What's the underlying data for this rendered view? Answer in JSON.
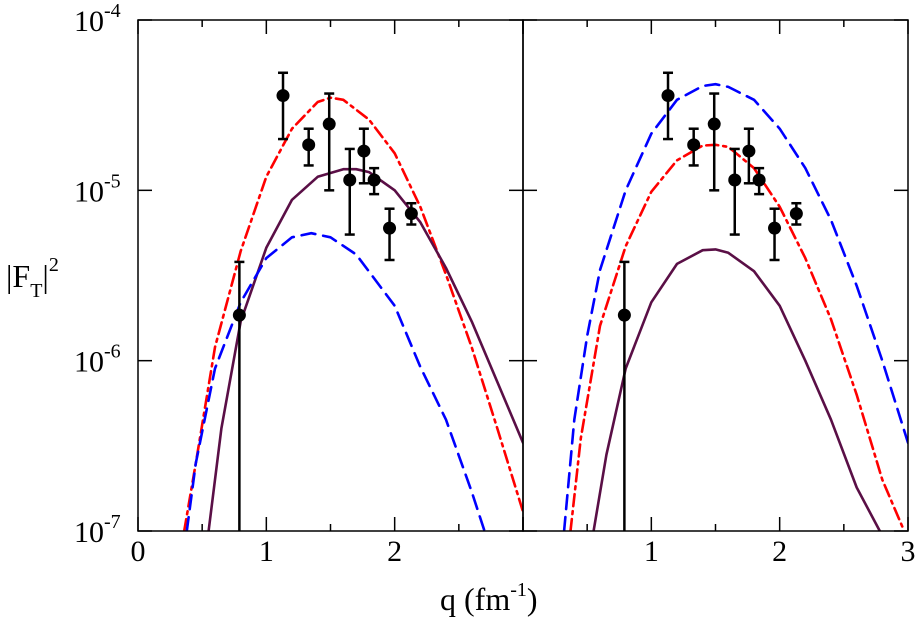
{
  "chart_data": {
    "type": "line",
    "title": "",
    "xlabel": "q (fm",
    "xlabel_exp": "-1",
    "xlabel_close": ")",
    "ylabel_main": "|F",
    "ylabel_sub": "T",
    "ylabel_close": "|",
    "ylabel_exp": "2",
    "yscale": "log",
    "ylim": [
      1e-07,
      0.0001
    ],
    "y_ticks": [
      {
        "base": "10",
        "exp": "-7"
      },
      {
        "base": "10",
        "exp": "-6"
      },
      {
        "base": "10",
        "exp": "-5"
      },
      {
        "base": "10",
        "exp": "-4"
      }
    ],
    "panels": [
      {
        "xlim": [
          0,
          3
        ],
        "x_tick_labels": [
          "0",
          "1",
          "2"
        ],
        "series": [
          {
            "name": "red-dashdot",
            "style": "dashdot",
            "color": "#ff0000",
            "x": [
              0.36,
              0.45,
              0.6,
              0.8,
              1.0,
              1.2,
              1.4,
              1.5,
              1.6,
              1.8,
              2.0,
              2.2,
              2.4,
              2.6,
              2.8,
              3.0
            ],
            "y": [
              1e-07,
              2.5e-07,
              1.2e-06,
              4.4e-06,
              1.2e-05,
              2.3e-05,
              3.3e-05,
              3.5e-05,
              3.4e-05,
              2.6e-05,
              1.65e-05,
              8e-06,
              3.2e-06,
              1.2e-06,
              4e-07,
              1.3e-07
            ]
          },
          {
            "name": "purple-solid",
            "style": "solid",
            "color": "#5a0f46",
            "x": [
              0.55,
              0.65,
              0.8,
              1.0,
              1.2,
              1.4,
              1.6,
              1.7,
              1.8,
              2.0,
              2.2,
              2.4,
              2.6,
              2.8,
              3.0
            ],
            "y": [
              1e-07,
              4e-07,
              1.7e-06,
              4.6e-06,
              8.8e-06,
              1.2e-05,
              1.33e-05,
              1.33e-05,
              1.28e-05,
              1e-05,
              6.5e-06,
              3.5e-06,
              1.7e-06,
              7.5e-07,
              3.3e-07
            ]
          },
          {
            "name": "blue-dashed",
            "style": "dashed",
            "color": "#0000ff",
            "x": [
              0.38,
              0.45,
              0.6,
              0.8,
              1.0,
              1.2,
              1.35,
              1.5,
              1.7,
              2.0,
              2.2,
              2.4,
              2.6,
              2.7
            ],
            "y": [
              1e-07,
              2.5e-07,
              9e-07,
              2.2e-06,
              4e-06,
              5.3e-06,
              5.6e-06,
              5.3e-06,
              4.2e-06,
              2.1e-06,
              9.2e-07,
              4.5e-07,
              1.7e-07,
              1e-07
            ]
          }
        ],
        "data_points": [
          {
            "x": 0.79,
            "y": 1.85e-06,
            "ylow": 1e-07,
            "yhigh": 3.8e-06
          },
          {
            "x": 1.13,
            "y": 3.6e-05,
            "ylow": 2e-05,
            "yhigh": 4.9e-05
          },
          {
            "x": 1.33,
            "y": 1.85e-05,
            "ylow": 1.4e-05,
            "yhigh": 2.3e-05
          },
          {
            "x": 1.49,
            "y": 2.45e-05,
            "ylow": 1e-05,
            "yhigh": 3.7e-05
          },
          {
            "x": 1.65,
            "y": 1.15e-05,
            "ylow": 5.5e-06,
            "yhigh": 1.75e-05
          },
          {
            "x": 1.76,
            "y": 1.7e-05,
            "ylow": 1.1e-05,
            "yhigh": 2.3e-05
          },
          {
            "x": 1.84,
            "y": 1.15e-05,
            "ylow": 9.5e-06,
            "yhigh": 1.35e-05
          },
          {
            "x": 1.96,
            "y": 6e-06,
            "ylow": 3.9e-06,
            "yhigh": 7.8e-06
          },
          {
            "x": 2.13,
            "y": 7.3e-06,
            "ylow": 6.3e-06,
            "yhigh": 8.4e-06
          }
        ]
      },
      {
        "xlim": [
          0,
          3
        ],
        "x_tick_labels": [
          "1",
          "2",
          "3"
        ],
        "series": [
          {
            "name": "blue-dashed",
            "style": "dashed",
            "color": "#0000ff",
            "x": [
              0.32,
              0.4,
              0.5,
              0.6,
              0.8,
              1.0,
              1.2,
              1.4,
              1.5,
              1.6,
              1.8,
              2.0,
              2.2,
              2.4,
              2.6,
              2.8,
              3.0
            ],
            "y": [
              1e-07,
              4.5e-07,
              1.4e-06,
              3.4e-06,
              1e-05,
              2.15e-05,
              3.4e-05,
              4.1e-05,
              4.2e-05,
              4.05e-05,
              3.4e-05,
              2.3e-05,
              1.35e-05,
              6.7e-06,
              2.75e-06,
              1e-06,
              3.3e-07
            ]
          },
          {
            "name": "red-dashdot",
            "style": "dashdot",
            "color": "#ff0000",
            "x": [
              0.37,
              0.45,
              0.6,
              0.8,
              1.0,
              1.2,
              1.4,
              1.5,
              1.6,
              1.8,
              2.0,
              2.2,
              2.4,
              2.6,
              2.8,
              2.97
            ],
            "y": [
              1e-07,
              3.5e-07,
              1.6e-06,
              4.7e-06,
              9.8e-06,
              1.5e-05,
              1.83e-05,
              1.85e-05,
              1.8e-05,
              1.35e-05,
              8e-06,
              4e-06,
              1.75e-06,
              6.3e-07,
              2e-07,
              1e-07
            ]
          },
          {
            "name": "purple-solid",
            "style": "solid",
            "color": "#5a0f46",
            "x": [
              0.55,
              0.65,
              0.8,
              1.0,
              1.2,
              1.4,
              1.5,
              1.6,
              1.8,
              2.0,
              2.2,
              2.4,
              2.6,
              2.78
            ],
            "y": [
              1e-07,
              2.8e-07,
              9e-07,
              2.2e-06,
              3.7e-06,
              4.45e-06,
              4.5e-06,
              4.3e-06,
              3.35e-06,
              2.1e-06,
              1e-06,
              4.5e-07,
              1.8e-07,
              1e-07
            ]
          }
        ],
        "data_points": [
          {
            "x": 0.79,
            "y": 1.85e-06,
            "ylow": 1e-07,
            "yhigh": 3.8e-06
          },
          {
            "x": 1.13,
            "y": 3.6e-05,
            "ylow": 2e-05,
            "yhigh": 4.9e-05
          },
          {
            "x": 1.33,
            "y": 1.85e-05,
            "ylow": 1.4e-05,
            "yhigh": 2.3e-05
          },
          {
            "x": 1.49,
            "y": 2.45e-05,
            "ylow": 1e-05,
            "yhigh": 3.7e-05
          },
          {
            "x": 1.65,
            "y": 1.15e-05,
            "ylow": 5.5e-06,
            "yhigh": 1.75e-05
          },
          {
            "x": 1.76,
            "y": 1.7e-05,
            "ylow": 1.1e-05,
            "yhigh": 2.3e-05
          },
          {
            "x": 1.84,
            "y": 1.15e-05,
            "ylow": 9.5e-06,
            "yhigh": 1.35e-05
          },
          {
            "x": 1.96,
            "y": 6e-06,
            "ylow": 3.9e-06,
            "yhigh": 7.8e-06
          },
          {
            "x": 2.13,
            "y": 7.3e-06,
            "ylow": 6.3e-06,
            "yhigh": 8.4e-06
          }
        ]
      }
    ]
  }
}
